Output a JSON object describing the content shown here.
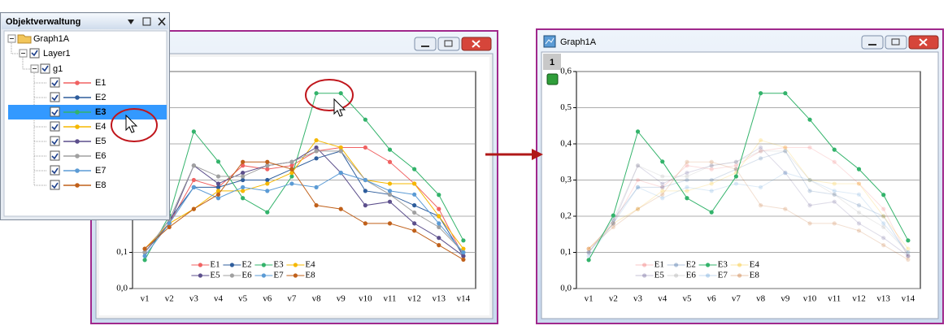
{
  "object_manager": {
    "title": "Objektverwaltung",
    "graph": "Graph1A",
    "layer": "Layer1",
    "group": "g1",
    "selected": "E3"
  },
  "layer_tab": "1",
  "chart_data": [
    {
      "type": "line",
      "categories": [
        "v1",
        "v2",
        "v3",
        "v4",
        "v5",
        "v6",
        "v7",
        "v8",
        "v9",
        "v10",
        "v11",
        "v12",
        "v13",
        "v14"
      ],
      "series": [
        {
          "name": "E1",
          "color": "#f06262",
          "values": [
            0.11,
            0.18,
            0.3,
            0.28,
            0.34,
            0.33,
            0.34,
            0.38,
            0.39,
            0.39,
            0.35,
            0.29,
            0.22,
            0.09
          ]
        },
        {
          "name": "E2",
          "color": "#2e5d9c",
          "values": [
            0.1,
            0.19,
            0.28,
            0.28,
            0.3,
            0.3,
            0.33,
            0.36,
            0.38,
            0.27,
            0.26,
            0.23,
            0.2,
            0.09
          ]
        },
        {
          "name": "E3",
          "color": "#33b36b",
          "values": [
            0.079,
            0.202,
            0.434,
            0.351,
            0.25,
            0.211,
            0.31,
            0.54,
            0.54,
            0.467,
            0.384,
            0.33,
            0.259,
            0.133
          ]
        },
        {
          "name": "E4",
          "color": "#f5b800",
          "values": [
            0.11,
            0.18,
            0.22,
            0.27,
            0.27,
            0.29,
            0.32,
            0.41,
            0.39,
            0.3,
            0.29,
            0.29,
            0.2,
            0.11
          ]
        },
        {
          "name": "E5",
          "color": "#5c4f8c",
          "values": [
            0.1,
            0.18,
            0.34,
            0.29,
            0.32,
            0.34,
            0.35,
            0.39,
            0.32,
            0.23,
            0.24,
            0.18,
            0.14,
            0.09
          ]
        },
        {
          "name": "E6",
          "color": "#a0a0a0",
          "values": [
            0.1,
            0.19,
            0.34,
            0.31,
            0.31,
            0.34,
            0.35,
            0.38,
            0.38,
            0.3,
            0.26,
            0.21,
            0.17,
            0.1
          ]
        },
        {
          "name": "E7",
          "color": "#5b9bd5",
          "values": [
            0.09,
            0.18,
            0.28,
            0.25,
            0.28,
            0.27,
            0.29,
            0.28,
            0.32,
            0.3,
            0.27,
            0.26,
            0.18,
            0.1
          ]
        },
        {
          "name": "E8",
          "color": "#c0601a",
          "values": [
            0.11,
            0.17,
            0.22,
            0.26,
            0.35,
            0.35,
            0.33,
            0.23,
            0.22,
            0.18,
            0.18,
            0.16,
            0.12,
            0.08
          ]
        }
      ],
      "ylim": [
        0,
        0.6
      ],
      "yticks": [
        {
          "value": 0,
          "label": "0,0"
        },
        {
          "value": 0.1,
          "label": "0,1"
        },
        {
          "value": 0.2,
          "label": "0,2"
        },
        {
          "value": 0.3,
          "label": "0,3"
        },
        {
          "value": 0.4,
          "label": "0,4"
        },
        {
          "value": 0.5,
          "label": "0,5"
        },
        {
          "value": 0.6,
          "label": "0,6"
        }
      ],
      "grid": true,
      "legend": "bottom"
    },
    {
      "type": "line",
      "categories": [
        "v1",
        "v2",
        "v3",
        "v4",
        "v5",
        "v6",
        "v7",
        "v8",
        "v9",
        "v10",
        "v11",
        "v12",
        "v13",
        "v14"
      ],
      "series": [
        {
          "name": "E1",
          "color": "#f06262",
          "values": [
            0.11,
            0.18,
            0.3,
            0.28,
            0.34,
            0.33,
            0.34,
            0.38,
            0.39,
            0.39,
            0.35,
            0.29,
            0.22,
            0.09
          ]
        },
        {
          "name": "E2",
          "color": "#2e5d9c",
          "values": [
            0.1,
            0.19,
            0.28,
            0.28,
            0.3,
            0.3,
            0.33,
            0.36,
            0.38,
            0.27,
            0.26,
            0.23,
            0.2,
            0.09
          ]
        },
        {
          "name": "E3",
          "color": "#33b36b",
          "values": [
            0.079,
            0.202,
            0.434,
            0.351,
            0.25,
            0.211,
            0.31,
            0.54,
            0.54,
            0.467,
            0.384,
            0.33,
            0.259,
            0.133
          ]
        },
        {
          "name": "E4",
          "color": "#f5b800",
          "values": [
            0.11,
            0.18,
            0.22,
            0.27,
            0.27,
            0.29,
            0.32,
            0.41,
            0.39,
            0.3,
            0.29,
            0.29,
            0.2,
            0.11
          ]
        },
        {
          "name": "E5",
          "color": "#5c4f8c",
          "values": [
            0.1,
            0.18,
            0.34,
            0.29,
            0.32,
            0.34,
            0.35,
            0.39,
            0.32,
            0.23,
            0.24,
            0.18,
            0.14,
            0.09
          ]
        },
        {
          "name": "E6",
          "color": "#a0a0a0",
          "values": [
            0.1,
            0.19,
            0.34,
            0.31,
            0.31,
            0.34,
            0.35,
            0.38,
            0.38,
            0.3,
            0.26,
            0.21,
            0.17,
            0.1
          ]
        },
        {
          "name": "E7",
          "color": "#5b9bd5",
          "values": [
            0.09,
            0.18,
            0.28,
            0.25,
            0.28,
            0.27,
            0.29,
            0.28,
            0.32,
            0.3,
            0.27,
            0.26,
            0.18,
            0.1
          ]
        },
        {
          "name": "E8",
          "color": "#c0601a",
          "values": [
            0.11,
            0.17,
            0.22,
            0.26,
            0.35,
            0.35,
            0.33,
            0.23,
            0.22,
            0.18,
            0.18,
            0.16,
            0.12,
            0.08
          ]
        }
      ],
      "ylim": [
        0,
        0.6
      ],
      "yticks": [
        {
          "value": 0,
          "label": "0,0"
        },
        {
          "value": 0.1,
          "label": "0,1"
        },
        {
          "value": 0.2,
          "label": "0,2"
        },
        {
          "value": 0.3,
          "label": "0,3"
        },
        {
          "value": 0.4,
          "label": "0,4"
        },
        {
          "value": 0.5,
          "label": "0,5"
        },
        {
          "value": 0.6,
          "label": "0,6"
        }
      ],
      "grid": true,
      "legend": "bottom",
      "highlight": "E3"
    }
  ]
}
